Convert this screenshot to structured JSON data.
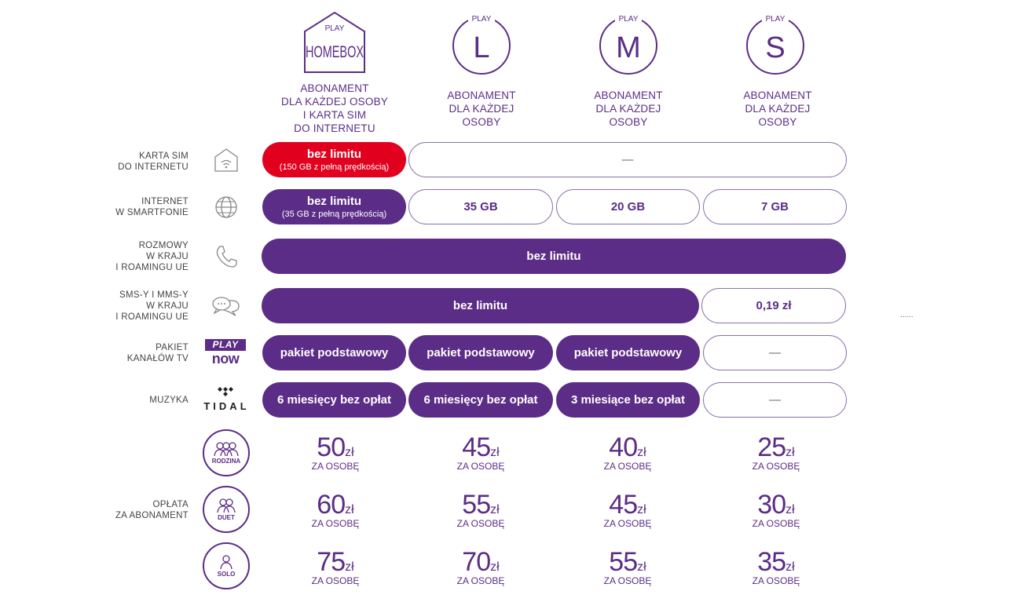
{
  "plans": [
    {
      "brand": "PLAY",
      "name": "HOMEBOX",
      "desc": [
        "ABONAMENT",
        "DLA KAŻDEJ OSOBY",
        "I KARTA SIM",
        "DO INTERNETU"
      ]
    },
    {
      "brand": "PLAY",
      "name": "L",
      "desc": [
        "ABONAMENT",
        "DLA KAŻDEJ",
        "OSOBY"
      ]
    },
    {
      "brand": "PLAY",
      "name": "M",
      "desc": [
        "ABONAMENT",
        "DLA KAŻDEJ",
        "OSOBY"
      ]
    },
    {
      "brand": "PLAY",
      "name": "S",
      "desc": [
        "ABONAMENT",
        "DLA KAŻDEJ",
        "OSOBY"
      ]
    }
  ],
  "rows": {
    "sim": {
      "label": [
        "KARTA SIM",
        "DO INTERNETU"
      ],
      "homebox": "bez limitu",
      "homebox_sub": "(150 GB z pełną prędkością)",
      "others": "—"
    },
    "internet": {
      "label": [
        "INTERNET",
        "W SMARTFONIE"
      ],
      "homebox": "bez limitu",
      "homebox_sub": "(35 GB z pełną prędkością)",
      "L": "35 GB",
      "M": "20 GB",
      "S": "7 GB"
    },
    "calls": {
      "label": [
        "ROZMOWY",
        "W KRAJU",
        "I ROAMINGU UE"
      ],
      "all": "bez limitu"
    },
    "sms": {
      "label": [
        "SMS-Y I MMS-Y",
        "W KRAJU",
        "I ROAMINGU UE"
      ],
      "hlm": "bez limitu",
      "S": "0,19 zł"
    },
    "tv": {
      "label": [
        "PAKIET",
        "KANAŁÓW TV"
      ],
      "logo_top": "PLAY",
      "logo_bottom": "now",
      "homebox": "pakiet podstawowy",
      "L": "pakiet podstawowy",
      "M": "pakiet podstawowy",
      "S": "—"
    },
    "music": {
      "label": [
        "MUZYKA"
      ],
      "logo": "TIDAL",
      "homebox": "6 miesięcy bez opłat",
      "L": "6 miesięcy bez opłat",
      "M": "3 miesiące bez opłat",
      "S": "—"
    }
  },
  "pricing": {
    "label": [
      "OPŁATA",
      "ZA ABONAMENT"
    ],
    "currency": "zł",
    "per": "ZA OSOBĘ",
    "tiers": [
      {
        "name": "RODZINA",
        "values": [
          "50",
          "45",
          "40",
          "25"
        ]
      },
      {
        "name": "DUET",
        "values": [
          "60",
          "55",
          "45",
          "30"
        ]
      },
      {
        "name": "SOLO",
        "values": [
          "75",
          "70",
          "55",
          "35"
        ]
      }
    ]
  },
  "dots": "......",
  "colors": {
    "purple": "#5b2d86",
    "red": "#e1001e",
    "outline": "#8a72a8"
  }
}
